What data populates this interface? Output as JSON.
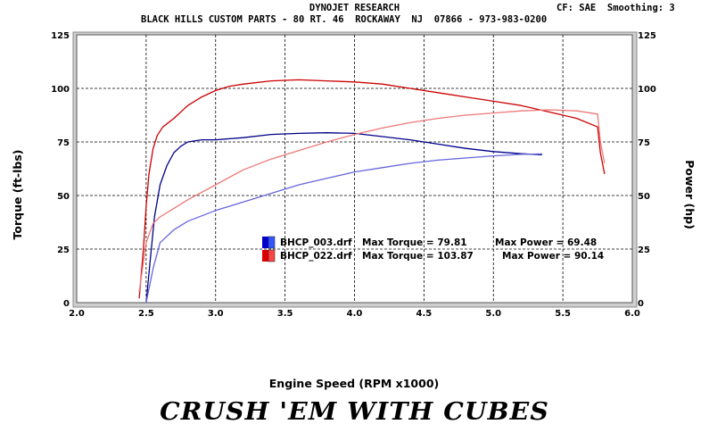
{
  "header": {
    "title": "DYNOJET RESEARCH",
    "company": "BLACK HILLS CUSTOM PARTS - 80 RT. 46  ROCKAWAY  NJ  07866 - 973-983-0200",
    "cf": "CF: SAE  Smoothing: 3"
  },
  "footer": {
    "slogan": "CRUSH 'EM WITH CUBES"
  },
  "chart_data": {
    "type": "line",
    "title": "",
    "xlabel": "Engine Speed (RPM x1000)",
    "ylabel": "Torque (ft-lbs)",
    "ylabel_right": "Power (hp)",
    "xlim": [
      2.0,
      6.0
    ],
    "ylim": [
      0,
      125
    ],
    "ylim_right": [
      0,
      125
    ],
    "x_ticks": [
      "2.0",
      "2.5",
      "3.0",
      "3.5",
      "4.0",
      "4.5",
      "5.0",
      "5.5",
      "6.0"
    ],
    "y_ticks": [
      "0",
      "25",
      "50",
      "75",
      "100",
      "125"
    ],
    "grid": true,
    "legend_position": "center-right",
    "legend": [
      {
        "file": "BHCP_003.drf",
        "torque_label": "Max Torque = 79.81",
        "power_label": "Max Power = 69.48",
        "color": "#0000cc"
      },
      {
        "file": "BHCP_022.drf",
        "torque_label": "Max Torque = 103.87",
        "power_label": "Max Power = 90.14",
        "color": "#dd0000"
      }
    ],
    "series": [
      {
        "name": "BHCP_003.drf Torque",
        "color": "#000088",
        "x": [
          2.5,
          2.53,
          2.56,
          2.6,
          2.65,
          2.7,
          2.75,
          2.8,
          2.9,
          3.0,
          3.2,
          3.4,
          3.6,
          3.8,
          4.0,
          4.2,
          4.4,
          4.6,
          4.8,
          5.0,
          5.2,
          5.35
        ],
        "y": [
          0,
          20,
          40,
          55,
          64,
          70,
          73,
          75,
          76,
          76,
          77,
          78.5,
          79,
          79.3,
          79,
          77.5,
          76,
          74,
          72,
          70.5,
          69.5,
          69
        ]
      },
      {
        "name": "BHCP_003.drf Power",
        "color": "#6666dd",
        "x": [
          2.5,
          2.55,
          2.6,
          2.7,
          2.8,
          3.0,
          3.2,
          3.4,
          3.6,
          3.8,
          4.0,
          4.2,
          4.4,
          4.6,
          4.8,
          5.0,
          5.2,
          5.35
        ],
        "y": [
          0,
          16,
          28,
          34,
          38,
          43,
          47,
          51,
          55,
          58,
          61,
          63,
          65,
          66.5,
          67.5,
          68.5,
          69.2,
          69.4
        ]
      },
      {
        "name": "BHCP_022.drf Torque",
        "color": "#cc0000",
        "x": [
          2.45,
          2.48,
          2.5,
          2.52,
          2.55,
          2.58,
          2.62,
          2.7,
          2.8,
          2.9,
          3.0,
          3.1,
          3.2,
          3.4,
          3.6,
          3.8,
          4.0,
          4.2,
          4.4,
          4.6,
          4.8,
          5.0,
          5.2,
          5.4,
          5.6,
          5.75,
          5.77,
          5.8
        ],
        "y": [
          2,
          25,
          45,
          60,
          72,
          78,
          82,
          86,
          92,
          96,
          99,
          101,
          102,
          103.5,
          104,
          103.5,
          103,
          102,
          100,
          98,
          96,
          94,
          92,
          89,
          86,
          82,
          70,
          60
        ]
      },
      {
        "name": "BHCP_022.drf Power",
        "color": "#ee7777",
        "x": [
          2.45,
          2.5,
          2.55,
          2.6,
          2.7,
          2.8,
          3.0,
          3.2,
          3.4,
          3.6,
          3.8,
          4.0,
          4.2,
          4.4,
          4.6,
          4.8,
          5.0,
          5.2,
          5.4,
          5.6,
          5.75,
          5.77,
          5.8
        ],
        "y": [
          5,
          28,
          37,
          40,
          44,
          48,
          55,
          62,
          67,
          71,
          75,
          78.5,
          81.5,
          84,
          86,
          87.5,
          88.5,
          89.5,
          90,
          89.5,
          88,
          75,
          65
        ]
      }
    ]
  }
}
